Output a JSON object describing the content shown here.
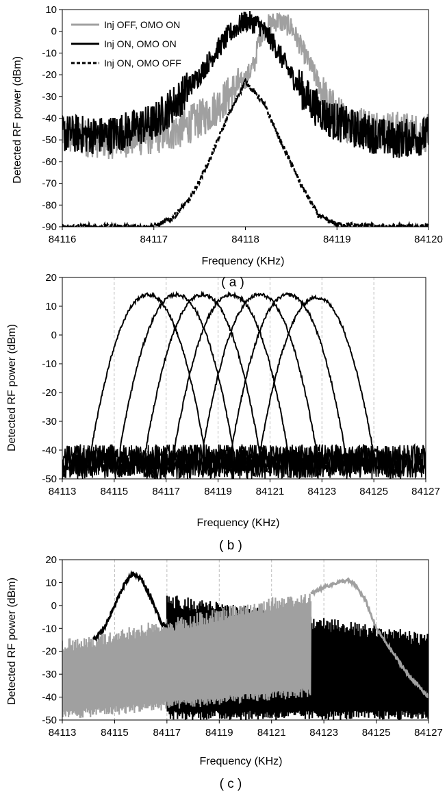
{
  "chart_data": [
    {
      "type": "line",
      "caption": "( a )",
      "xlabel": "Frequency (KHz)",
      "ylabel": "Detected RF power (dBm)",
      "xlim": [
        84116,
        84120
      ],
      "ylim": [
        -90,
        10
      ],
      "xticks": [
        84116,
        84117,
        84118,
        84119,
        84120
      ],
      "yticks": [
        -90,
        -80,
        -70,
        -60,
        -50,
        -40,
        -30,
        -20,
        -10,
        0,
        10
      ],
      "grid": false,
      "legend_position": "top-left",
      "series": [
        {
          "name": "Inj OFF, OMO ON",
          "color": "#a0a0a0",
          "style": "solid",
          "x": [
            84116.0,
            84116.5,
            84117.0,
            84117.3,
            84117.6,
            84117.8,
            84118.0,
            84118.1,
            84118.15,
            84118.25,
            84118.35,
            84118.5,
            84118.7,
            84118.9,
            84119.1,
            84119.5,
            84120.0
          ],
          "y": [
            -48,
            -50,
            -48,
            -45,
            -38,
            -30,
            -22,
            -15,
            -3,
            3,
            5,
            2,
            -15,
            -33,
            -42,
            -45,
            -47
          ]
        },
        {
          "name": "Inj ON, OMO ON",
          "color": "#000000",
          "style": "solid",
          "x": [
            84116.0,
            84116.5,
            84117.0,
            84117.3,
            84117.5,
            84117.7,
            84117.85,
            84118.0,
            84118.15,
            84118.3,
            84118.5,
            84118.7,
            84118.9,
            84119.2,
            84119.6,
            84120.0
          ],
          "y": [
            -47,
            -48,
            -42,
            -30,
            -20,
            -8,
            0,
            5,
            3,
            -5,
            -20,
            -32,
            -40,
            -45,
            -50,
            -48
          ]
        },
        {
          "name": "Inj ON, OMO OFF",
          "color": "#000000",
          "style": "dashed",
          "x": [
            84116.0,
            84116.6,
            84117.0,
            84117.2,
            84117.4,
            84117.6,
            84117.8,
            84118.0,
            84118.2,
            84118.4,
            84118.6,
            84118.8,
            84119.0,
            84119.5,
            84120.0
          ],
          "y": [
            -90,
            -90,
            -90,
            -86,
            -77,
            -60,
            -40,
            -23,
            -33,
            -52,
            -70,
            -85,
            -89,
            -90,
            -90
          ]
        }
      ]
    },
    {
      "type": "line",
      "caption": "( b )",
      "xlabel": "Frequency (KHz)",
      "ylabel": "Detected RF power (dBm)",
      "xlim": [
        84113,
        84127
      ],
      "ylim": [
        -50,
        20
      ],
      "xticks": [
        84113,
        84115,
        84117,
        84119,
        84121,
        84123,
        84125,
        84127
      ],
      "yticks": [
        -50,
        -40,
        -30,
        -20,
        -10,
        0,
        10,
        20
      ],
      "grid": true,
      "noise_floor": [
        -50,
        -38
      ],
      "series_color": "#000000",
      "peaks": [
        {
          "center": 84116.3,
          "peak": 14,
          "halfwidth": 2.3
        },
        {
          "center": 84117.4,
          "peak": 14,
          "halfwidth": 2.3
        },
        {
          "center": 84118.4,
          "peak": 14,
          "halfwidth": 2.3
        },
        {
          "center": 84119.5,
          "peak": 14,
          "halfwidth": 2.3
        },
        {
          "center": 84120.6,
          "peak": 14,
          "halfwidth": 2.3
        },
        {
          "center": 84121.7,
          "peak": 14,
          "halfwidth": 2.3
        },
        {
          "center": 84122.8,
          "peak": 13,
          "halfwidth": 2.3
        }
      ]
    },
    {
      "type": "line",
      "caption": "( c )",
      "xlabel": "Frequency (KHz)",
      "ylabel": "Detected RF power (dBm)",
      "xlim": [
        84113,
        84127
      ],
      "ylim": [
        -50,
        20
      ],
      "xticks": [
        84113,
        84115,
        84117,
        84119,
        84121,
        84123,
        84125,
        84127
      ],
      "yticks": [
        -50,
        -40,
        -30,
        -20,
        -10,
        0,
        10,
        20
      ],
      "grid": true,
      "series": [
        {
          "color": "#000000",
          "x": [
            84114.2,
            84114.6,
            84115.0,
            84115.4,
            84115.7,
            84116.0,
            84116.4,
            84116.8,
            84117.0
          ],
          "y": [
            -15,
            -10,
            0,
            10,
            14,
            12,
            3,
            -8,
            -9
          ],
          "oscillation": {
            "x": [
              84117.0,
              84127.0
            ],
            "upper": [
              5,
              -12
            ],
            "lower": [
              -50,
              -50
            ]
          }
        },
        {
          "color": "#a0a0a0",
          "x": [
            84122.5,
            84123.0,
            84123.5,
            84123.9,
            84124.2,
            84124.6,
            84125.0,
            84125.6,
            84126.2,
            84127.0
          ],
          "y": [
            5,
            8,
            10,
            11,
            9,
            2,
            -10,
            -20,
            -30,
            -40
          ],
          "oscillation": {
            "x": [
              84113.0,
              84122.5
            ],
            "upper": [
              -15,
              7
            ],
            "lower": [
              -50,
              -40
            ]
          }
        }
      ]
    }
  ]
}
